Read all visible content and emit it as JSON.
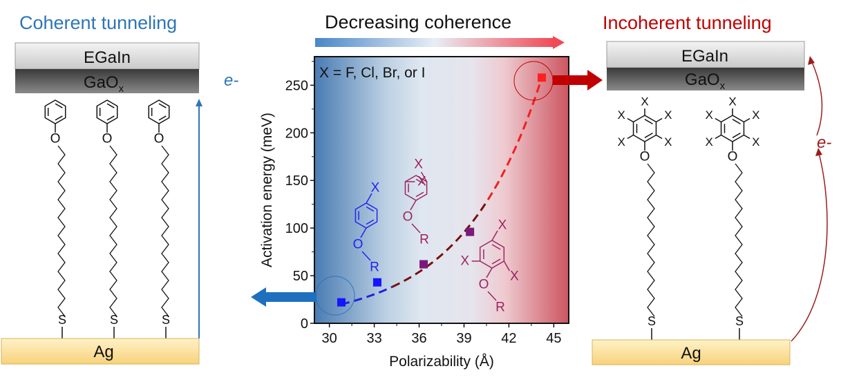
{
  "left_panel": {
    "title": "Coherent tunneling",
    "top_electrode": "EGaIn",
    "oxide": "GaO",
    "oxide_sub": "x",
    "bottom_electrode": "Ag",
    "electron": "e-"
  },
  "right_panel": {
    "title": "Incoherent tunneling",
    "top_electrode": "EGaIn",
    "oxide": "GaO",
    "oxide_sub": "x",
    "bottom_electrode": "Ag",
    "electron": "e-"
  },
  "center": {
    "title": "Decreasing coherence",
    "annotation": "X = F, Cl, Br, or I"
  },
  "atoms": {
    "X": "X",
    "O": "O",
    "R": "R",
    "S": "S"
  },
  "colors": {
    "coherent": "#2e75b6",
    "incoherent": "#c00000",
    "blue_marker": "#1515ff",
    "purple_marker": "#7a1a7a",
    "red_marker": "#ff2020"
  },
  "chart_data": {
    "type": "scatter",
    "title": "",
    "xlabel": "Polarizability (Å)",
    "ylabel": "Activation energy (meV)",
    "xlim": [
      29,
      46
    ],
    "ylim": [
      0,
      280
    ],
    "xticks": [
      30,
      33,
      36,
      39,
      42,
      45
    ],
    "yticks": [
      0,
      50,
      100,
      150,
      200,
      250
    ],
    "grid": false,
    "series": [
      {
        "name": "para-X",
        "color": "#1515ff",
        "x": [
          30.8,
          33.2
        ],
        "y": [
          22,
          43
        ]
      },
      {
        "name": "3,5-X2",
        "color": "#7a1a7a",
        "x": [
          36.3,
          39.4
        ],
        "y": [
          62,
          96
        ]
      },
      {
        "name": "X5",
        "color": "#ff2020",
        "x": [
          44.2
        ],
        "y": [
          258
        ]
      }
    ],
    "fit": {
      "type": "exponential",
      "x_from": 30.8,
      "x_to": 44.2,
      "y_from": 20,
      "y_to": 258,
      "style": "dashed"
    }
  }
}
